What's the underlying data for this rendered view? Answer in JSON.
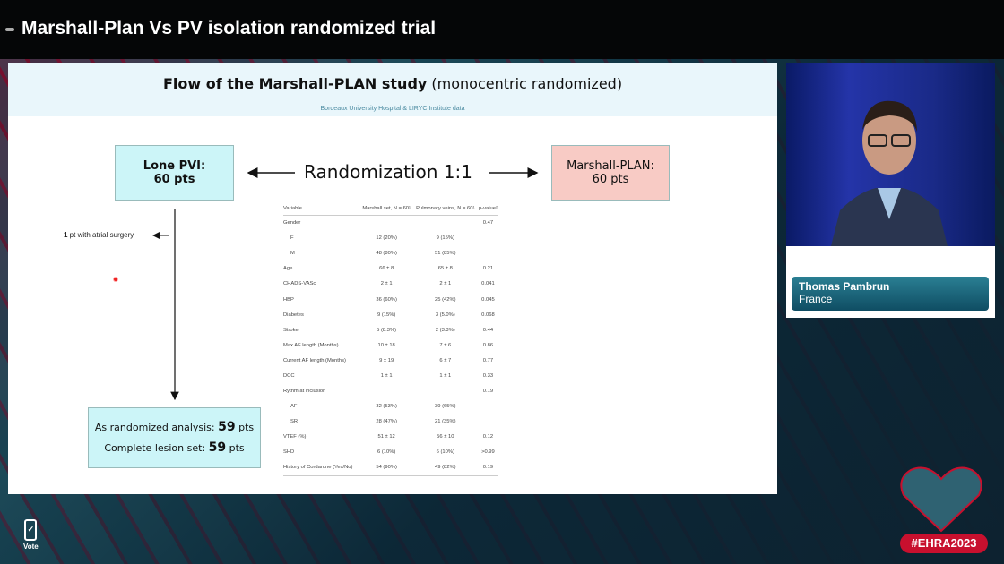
{
  "header": {
    "title": "Marshall-Plan Vs PV isolation randomized trial"
  },
  "slide": {
    "title_bold": "Flow of the Marshall-PLAN study",
    "title_rest": " (monocentric randomized)",
    "subtitle": "Bordeaux University Hospital & LIRYC Institute data",
    "arm_left": {
      "label": "Lone PVI:",
      "count": "60 pts"
    },
    "arm_right": {
      "label": "Marshall-PLAN:",
      "count": "60 pts"
    },
    "randomization": "Randomization 1:1",
    "exclusion": {
      "n": "1",
      "text": " pt with atrial surgery"
    },
    "final": {
      "line1": "As randomized analysis: ",
      "n1": "59",
      "u1": " pts",
      "line2": "Complete lesion set: ",
      "n2": "59",
      "u2": " pts"
    },
    "table": {
      "headers": [
        "Variable",
        "Marshall set, N = 60¹",
        "Pulmonary veins, N = 60¹",
        "p-value²"
      ],
      "rows": [
        [
          "Gender",
          "",
          "",
          "0.47",
          false
        ],
        [
          "F",
          "12 (20%)",
          "9 (15%)",
          "",
          true
        ],
        [
          "M",
          "48 (80%)",
          "51 (85%)",
          "",
          true
        ],
        [
          "Age",
          "66 ± 8",
          "65 ± 8",
          "0.21",
          false
        ],
        [
          "CHADS-VASc",
          "2 ± 1",
          "2 ± 1",
          "0.041",
          false
        ],
        [
          "HBP",
          "36 (60%)",
          "25 (42%)",
          "0.045",
          false
        ],
        [
          "Diabetes",
          "9 (15%)",
          "3 (5.0%)",
          "0.068",
          false
        ],
        [
          "Stroke",
          "5 (8.3%)",
          "2 (3.3%)",
          "0.44",
          false
        ],
        [
          "Max AF length (Months)",
          "10 ± 18",
          "7 ± 6",
          "0.86",
          false
        ],
        [
          "Current AF length (Months)",
          "9 ± 19",
          "6 ± 7",
          "0.77",
          false
        ],
        [
          "DCC",
          "1 ± 1",
          "1 ± 1",
          "0.33",
          false
        ],
        [
          "Rythm at inclusion",
          "",
          "",
          "0.19",
          false
        ],
        [
          "AF",
          "32 (53%)",
          "39 (65%)",
          "",
          true
        ],
        [
          "SR",
          "28 (47%)",
          "21 (35%)",
          "",
          true
        ],
        [
          "VTEF (%)",
          "51 ± 12",
          "56 ± 10",
          "0.12",
          false
        ],
        [
          "SHD",
          "6 (10%)",
          "6 (10%)",
          ">0.99",
          false
        ],
        [
          "History of Cordarone (Yes/No)",
          "54 (90%)",
          "49 (82%)",
          "0.19",
          false
        ]
      ]
    }
  },
  "speaker": {
    "name": "Thomas Pambrun",
    "country": "France"
  },
  "vote_label": "Vote",
  "hashtag": "#EHRA2023",
  "colors": {
    "accent": "#c8102e",
    "nameplate": "#1a6479",
    "arm_left": "#ccf5f8",
    "arm_right": "#f8cbc5"
  }
}
